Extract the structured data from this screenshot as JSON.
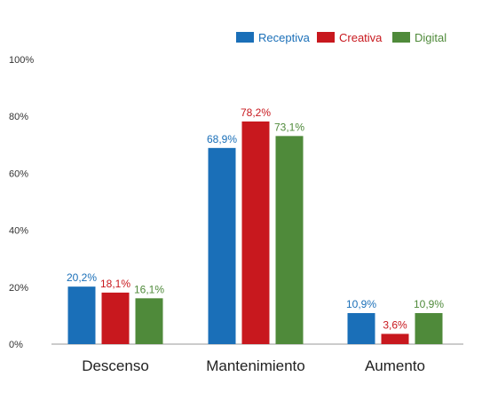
{
  "chart_data": {
    "type": "bar",
    "categories": [
      "Descenso",
      "Mantenimiento",
      "Aumento"
    ],
    "series": [
      {
        "name": "Receptiva",
        "color": "#1a6fb8",
        "values": [
          20.2,
          68.9,
          10.9
        ],
        "labels": [
          "20,2%",
          "68,9%",
          "10,9%"
        ]
      },
      {
        "name": "Creativa",
        "color": "#c8181e",
        "values": [
          18.1,
          78.2,
          3.6
        ],
        "labels": [
          "18,1%",
          "78,2%",
          "3,6%"
        ]
      },
      {
        "name": "Digital",
        "color": "#4f8a3a",
        "values": [
          16.1,
          73.1,
          10.9
        ],
        "labels": [
          "16,1%",
          "73,1%",
          "10,9%"
        ]
      }
    ],
    "yticks": [
      {
        "value": 0,
        "label": "0%"
      },
      {
        "value": 20,
        "label": "20%"
      },
      {
        "value": 40,
        "label": "40%"
      },
      {
        "value": 60,
        "label": "60%"
      },
      {
        "value": 80,
        "label": "80%"
      },
      {
        "value": 100,
        "label": "100%"
      }
    ],
    "ylim": [
      0,
      100
    ],
    "grid": false,
    "legend_position": "top-right",
    "title": "",
    "xlabel": "",
    "ylabel": ""
  }
}
